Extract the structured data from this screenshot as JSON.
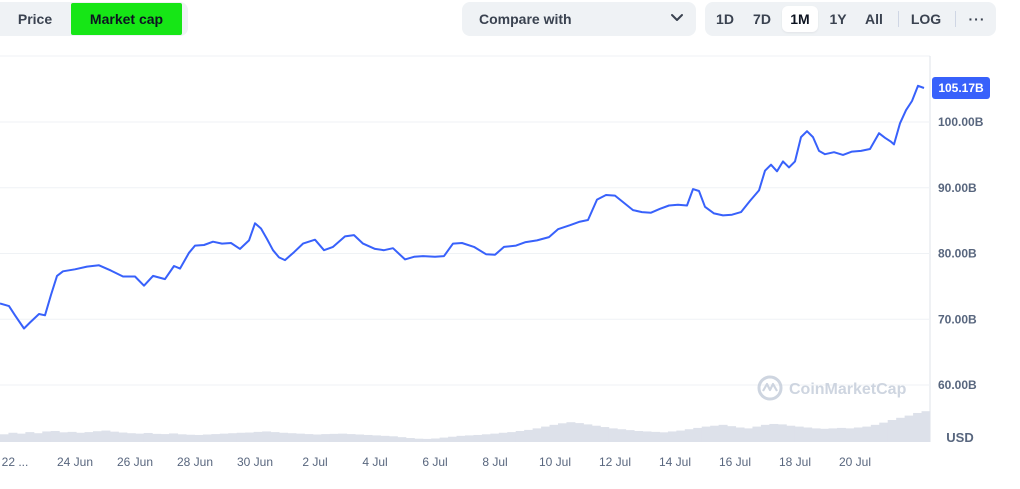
{
  "toolbar": {
    "tabs": [
      {
        "label": "Price",
        "active": false
      },
      {
        "label": "Market cap",
        "active": true,
        "highlight_color": "#16e616"
      }
    ],
    "compare": {
      "label": "Compare with",
      "icon": "chevron-down-icon"
    },
    "ranges": [
      {
        "label": "1D",
        "active": false
      },
      {
        "label": "7D",
        "active": false
      },
      {
        "label": "1M",
        "active": true
      },
      {
        "label": "1Y",
        "active": false
      },
      {
        "label": "All",
        "active": false
      }
    ],
    "log_label": "LOG",
    "more_icon": "more-horizontal-icon",
    "more_label": "···"
  },
  "watermark": {
    "text": "CoinMarketCap",
    "icon": "coinmarketcap-logo-icon"
  },
  "colors": {
    "line": "#3861fb",
    "volume": "#dde1ea",
    "grid": "#eff2f5",
    "axis_text": "#58667e",
    "label_bg": "#3861fb"
  },
  "chart_data": {
    "type": "line",
    "title": "",
    "xlabel": "",
    "ylabel": "USD",
    "unit": "USD",
    "ylim": [
      59,
      110
    ],
    "xlim": [
      21.5,
      52.5
    ],
    "y_ticks": [
      {
        "value": 100,
        "label": "100.00B"
      },
      {
        "value": 90,
        "label": "90.00B"
      },
      {
        "value": 80,
        "label": "80.00B"
      },
      {
        "value": 70,
        "label": "70.00B"
      },
      {
        "value": 60,
        "label": "60.00B"
      }
    ],
    "x_ticks": [
      {
        "day": 22,
        "label": "22 ..."
      },
      {
        "day": 24,
        "label": "24 Jun"
      },
      {
        "day": 26,
        "label": "26 Jun"
      },
      {
        "day": 28,
        "label": "28 Jun"
      },
      {
        "day": 30,
        "label": "30 Jun"
      },
      {
        "day": 32,
        "label": "2 Jul"
      },
      {
        "day": 34,
        "label": "4 Jul"
      },
      {
        "day": 36,
        "label": "6 Jul"
      },
      {
        "day": 38,
        "label": "8 Jul"
      },
      {
        "day": 40,
        "label": "10 Jul"
      },
      {
        "day": 42,
        "label": "12 Jul"
      },
      {
        "day": 44,
        "label": "14 Jul"
      },
      {
        "day": 46,
        "label": "16 Jul"
      },
      {
        "day": 48,
        "label": "18 Jul"
      },
      {
        "day": 50,
        "label": "20 Jul"
      }
    ],
    "last_value": {
      "value": 105.17,
      "label": "105.17B"
    },
    "series": [
      {
        "x": [
          21.5,
          21.8,
          22.0,
          22.3,
          22.5,
          22.8,
          23.0,
          23.2,
          23.4,
          23.6,
          24.0,
          24.4,
          24.8,
          25.2,
          25.6,
          26.0,
          26.3,
          26.6,
          27.0,
          27.3,
          27.5,
          27.8,
          28.0,
          28.3,
          28.6,
          28.9,
          29.2,
          29.5,
          29.8,
          30.0,
          30.2,
          30.4,
          30.6,
          30.8,
          31.0,
          31.3,
          31.6,
          32.0,
          32.3,
          32.6,
          33.0,
          33.3,
          33.6,
          34.0,
          34.3,
          34.6,
          35.0,
          35.3,
          35.6,
          36.0,
          36.3,
          36.6,
          36.9,
          37.3,
          37.7,
          38.0,
          38.3,
          38.7,
          39.0,
          39.4,
          39.8,
          40.1,
          40.5,
          40.8,
          41.1,
          41.4,
          41.7,
          42.0,
          42.3,
          42.6,
          42.9,
          43.2,
          43.5,
          43.8,
          44.1,
          44.4,
          44.6,
          44.8,
          45.0,
          45.3,
          45.6,
          45.9,
          46.2,
          46.5,
          46.8,
          47.0,
          47.2,
          47.4,
          47.6,
          47.8,
          48.0,
          48.2,
          48.4,
          48.6,
          48.8,
          49.0,
          49.3,
          49.6,
          49.9,
          50.2,
          50.5,
          50.8,
          51.0,
          51.2,
          51.3,
          51.5,
          51.7,
          51.9,
          52.1,
          52.3
        ],
        "values": [
          72.4,
          72.0,
          70.6,
          68.6,
          69.5,
          70.8,
          70.6,
          73.7,
          76.6,
          77.3,
          77.6,
          78.0,
          78.2,
          77.4,
          76.5,
          76.5,
          75.1,
          76.6,
          76.1,
          78.1,
          77.7,
          80.1,
          81.2,
          81.3,
          81.8,
          81.5,
          81.6,
          80.7,
          82.0,
          84.6,
          83.8,
          82.2,
          80.5,
          79.4,
          79.0,
          80.2,
          81.5,
          82.1,
          80.5,
          81.0,
          82.6,
          82.8,
          81.5,
          80.7,
          80.5,
          80.8,
          79.1,
          79.5,
          79.6,
          79.5,
          79.6,
          81.5,
          81.6,
          81.0,
          79.9,
          79.8,
          81.0,
          81.2,
          81.7,
          82.0,
          82.5,
          83.7,
          84.3,
          84.8,
          85.1,
          88.2,
          88.9,
          88.8,
          87.7,
          86.6,
          86.3,
          86.2,
          86.8,
          87.3,
          87.4,
          87.3,
          89.8,
          89.5,
          87.1,
          86.1,
          85.8,
          85.9,
          86.3,
          88.0,
          89.6,
          92.6,
          93.5,
          92.5,
          94.0,
          93.1,
          94.0,
          97.7,
          98.6,
          97.7,
          95.6,
          95.1,
          95.4,
          95.0,
          95.5,
          95.6,
          95.9,
          98.3,
          97.6,
          97.0,
          96.6,
          99.8,
          101.8,
          103.2,
          105.5,
          105.17
        ],
        "volume": [
          0.35,
          0.42,
          0.38,
          0.45,
          0.4,
          0.48,
          0.5,
          0.44,
          0.46,
          0.42,
          0.45,
          0.49,
          0.52,
          0.47,
          0.43,
          0.4,
          0.38,
          0.41,
          0.37,
          0.36,
          0.39,
          0.35,
          0.33,
          0.32,
          0.34,
          0.36,
          0.38,
          0.4,
          0.42,
          0.43,
          0.46,
          0.48,
          0.45,
          0.42,
          0.4,
          0.38,
          0.36,
          0.34,
          0.36,
          0.37,
          0.38,
          0.36,
          0.34,
          0.32,
          0.3,
          0.28,
          0.26,
          0.22,
          0.18,
          0.15,
          0.14,
          0.16,
          0.2,
          0.24,
          0.28,
          0.3,
          0.32,
          0.35,
          0.38,
          0.42,
          0.45,
          0.5,
          0.55,
          0.62,
          0.7,
          0.78,
          0.85,
          0.9,
          0.86,
          0.8,
          0.74,
          0.68,
          0.62,
          0.58,
          0.54,
          0.5,
          0.48,
          0.46,
          0.44,
          0.48,
          0.52,
          0.58,
          0.64,
          0.7,
          0.74,
          0.78,
          0.72,
          0.66,
          0.62,
          0.7,
          0.78,
          0.82,
          0.8,
          0.74,
          0.7,
          0.66,
          0.62,
          0.6,
          0.62,
          0.64,
          0.62,
          0.66,
          0.7,
          0.78,
          0.88,
          1.0,
          1.1,
          1.2,
          1.32,
          1.4
        ]
      }
    ]
  }
}
